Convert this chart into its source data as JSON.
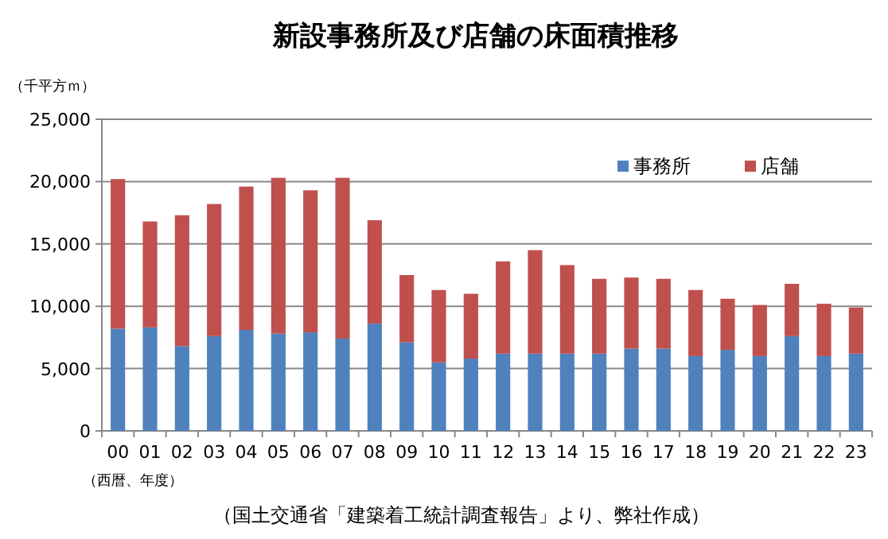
{
  "chart_data": {
    "type": "bar",
    "title": "新設事務所及び店舗の床面積推移",
    "ylabel": "（千平方ｍ）",
    "xlabel": "（西暦、年度）",
    "annotations": [
      "（国土交通省「建築着工統計調査報告」より、弊社作成）"
    ],
    "categories": [
      "00",
      "01",
      "02",
      "03",
      "04",
      "05",
      "06",
      "07",
      "08",
      "09",
      "10",
      "11",
      "12",
      "13",
      "14",
      "15",
      "16",
      "17",
      "18",
      "19",
      "20",
      "21",
      "22",
      "23"
    ],
    "stacked": true,
    "series": [
      {
        "name": "事務所",
        "color": "#4f81bd",
        "values": [
          8200,
          8300,
          6800,
          7600,
          8100,
          7800,
          7900,
          7400,
          8600,
          7100,
          5500,
          5800,
          6200,
          6200,
          6200,
          6200,
          6600,
          6600,
          6000,
          6500,
          6000,
          7600,
          6000,
          6200
        ]
      },
      {
        "name": "店舗",
        "color": "#c0504d",
        "values": [
          12000,
          8500,
          10500,
          10600,
          11500,
          12500,
          11400,
          12900,
          8300,
          5400,
          5800,
          5200,
          7400,
          8300,
          7100,
          6000,
          5700,
          5600,
          5300,
          4100,
          4100,
          4200,
          4200,
          3700
        ]
      }
    ],
    "ylim": [
      0,
      25000
    ],
    "yticks": [
      0,
      {
        "value": 5000,
        "label": "5,000"
      },
      {
        "value": 10000,
        "label": "10,000"
      },
      {
        "value": 15000,
        "label": "15,000"
      },
      {
        "value": 20000,
        "label": "20,000"
      },
      {
        "value": 25000,
        "label": "25,000"
      }
    ],
    "grid": "y",
    "legend": "top right"
  }
}
